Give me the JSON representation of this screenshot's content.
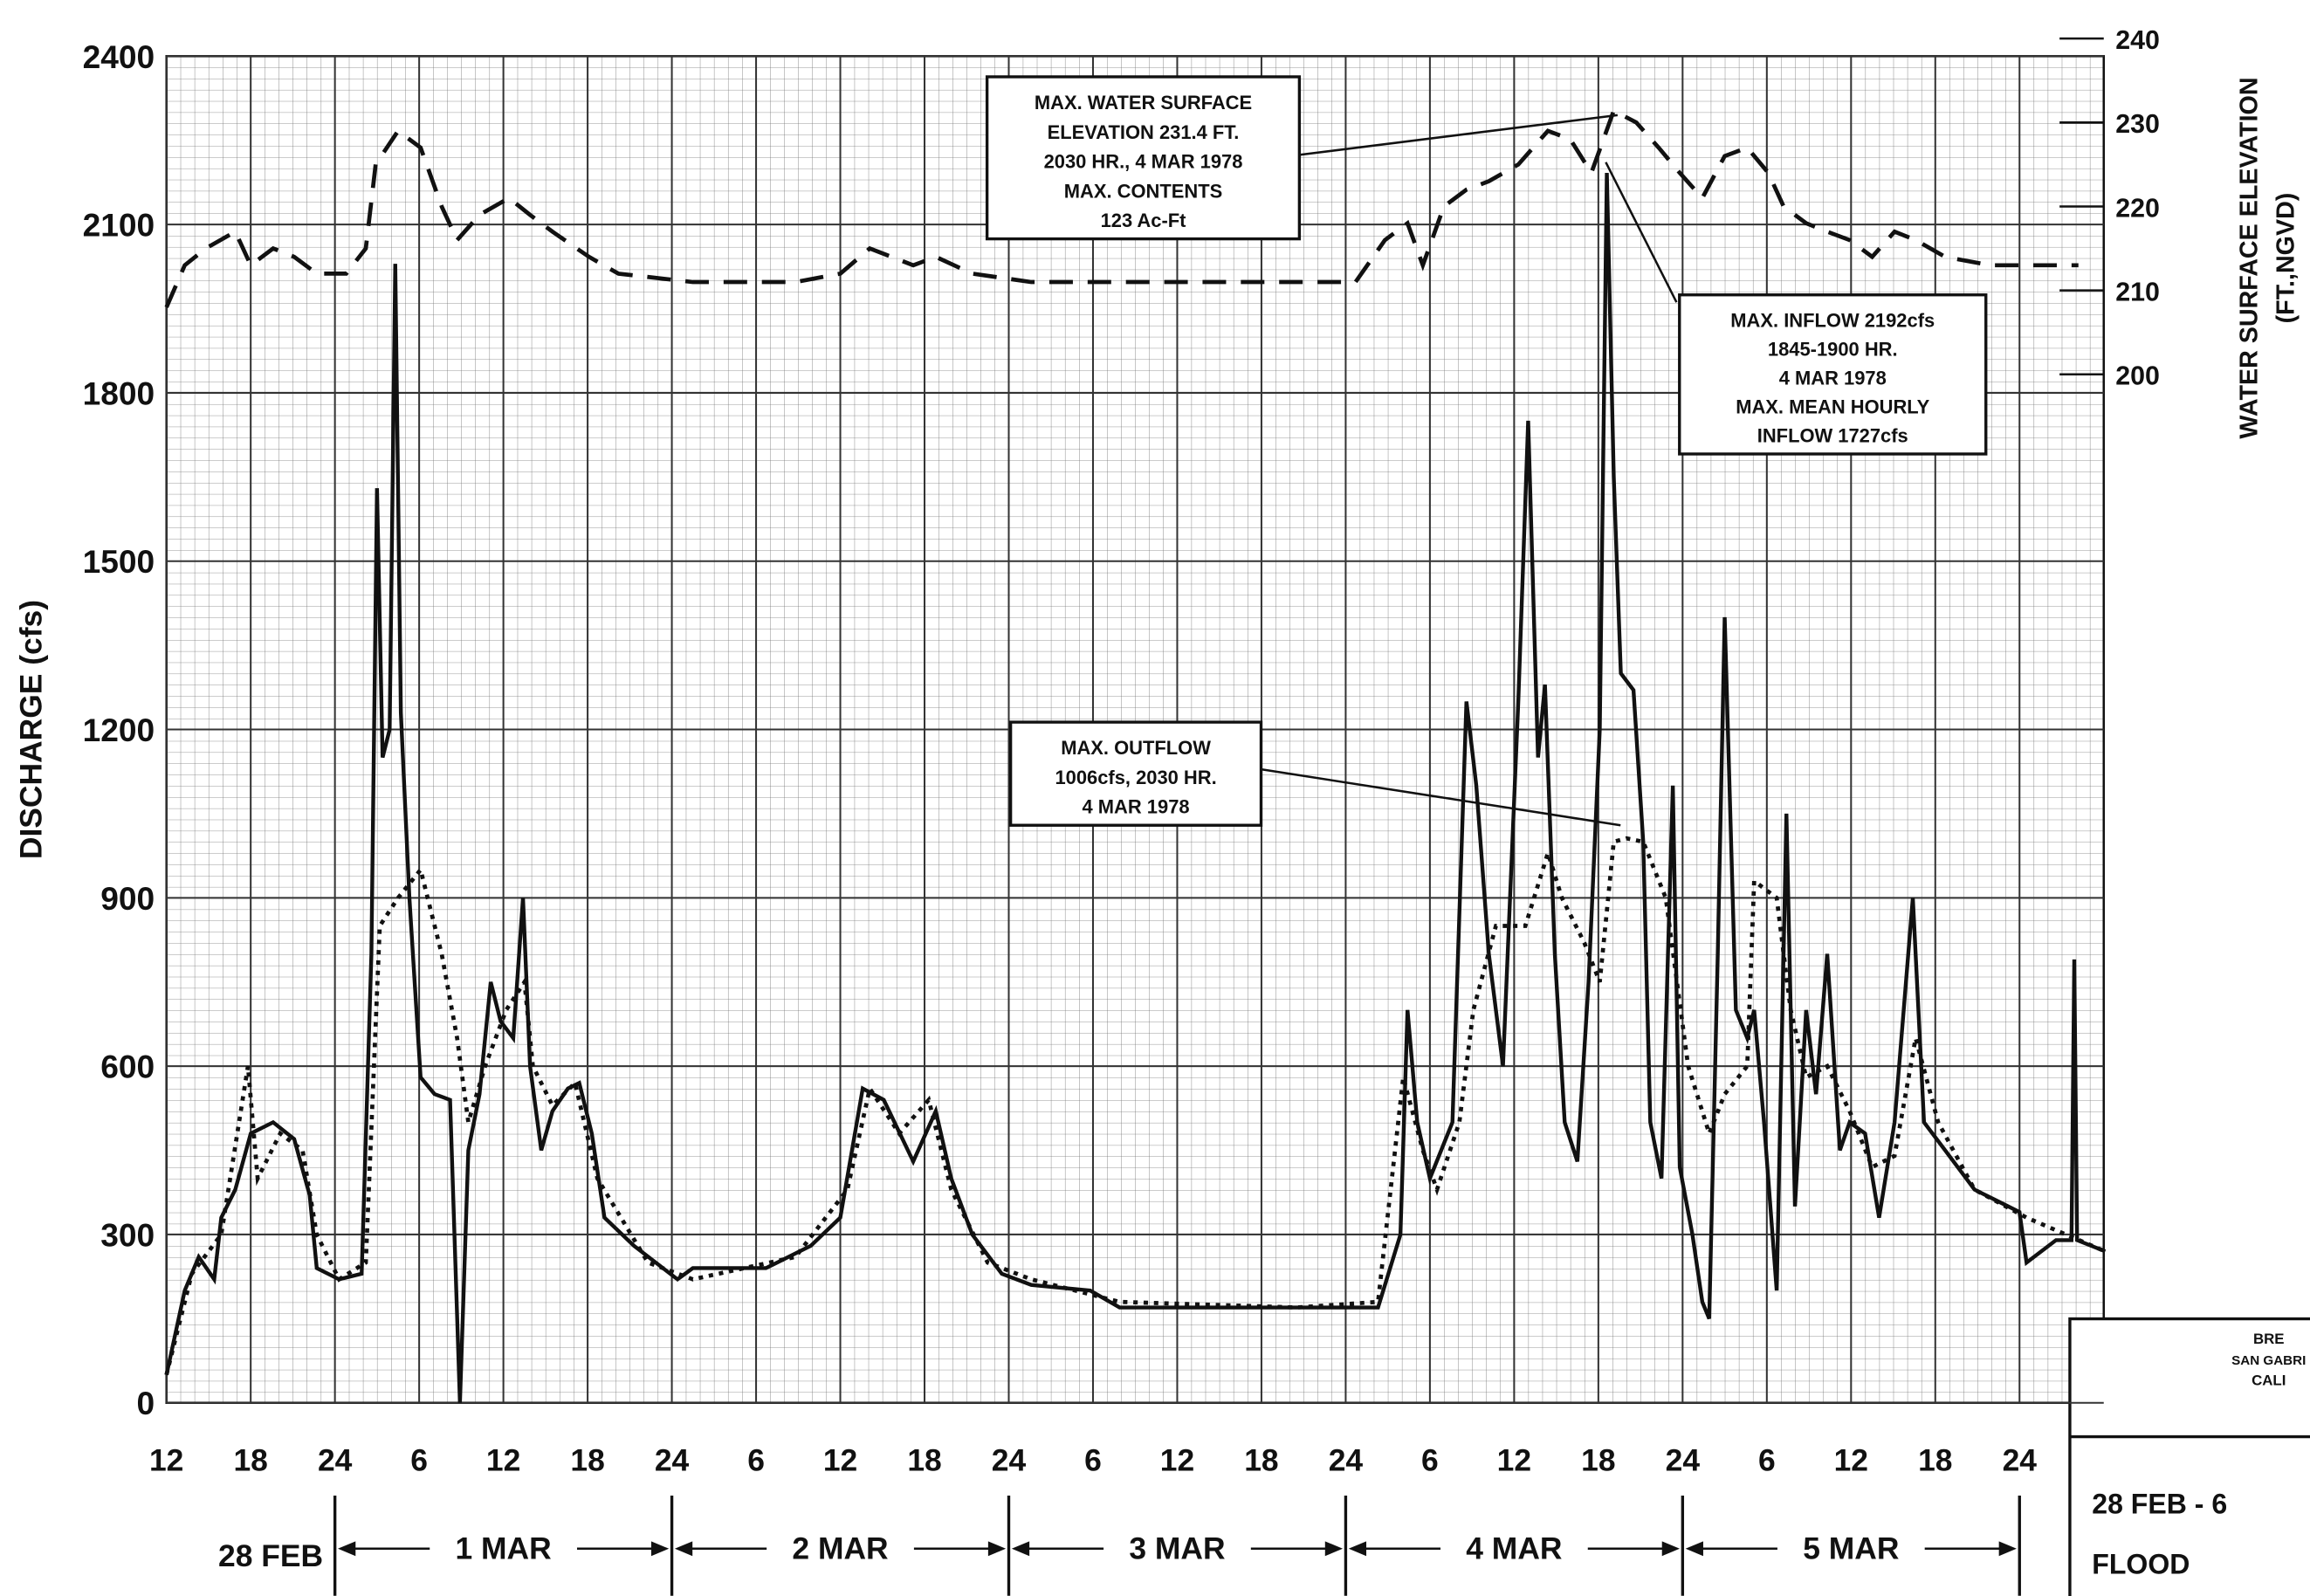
{
  "chart_data": {
    "type": "line",
    "y_label": "DISCHARGE (cfs)",
    "y2_label": [
      "WATER SURFACE ELEVATION",
      "(FT.,NGVD)"
    ],
    "xlim": [
      12,
      150
    ],
    "xticks": [
      12,
      18,
      24,
      {
        "value": 30,
        "label": "6"
      },
      {
        "value": 36,
        "label": "12"
      },
      {
        "value": 42,
        "label": "18"
      },
      {
        "value": 48,
        "label": "24"
      },
      {
        "value": 54,
        "label": "6"
      },
      {
        "value": 60,
        "label": "12"
      },
      {
        "value": 66,
        "label": "18"
      },
      {
        "value": 72,
        "label": "24"
      },
      {
        "value": 78,
        "label": "6"
      },
      {
        "value": 84,
        "label": "12"
      },
      {
        "value": 90,
        "label": "18"
      },
      {
        "value": 96,
        "label": "24"
      },
      {
        "value": 102,
        "label": "6"
      },
      {
        "value": 108,
        "label": "12"
      },
      {
        "value": 114,
        "label": "18"
      },
      {
        "value": 120,
        "label": "24"
      },
      {
        "value": 126,
        "label": "6"
      },
      {
        "value": 132,
        "label": "12"
      },
      {
        "value": 138,
        "label": "18"
      },
      {
        "value": 144,
        "label": "24"
      }
    ],
    "day_labels": [
      "28 FEB",
      "1 MAR",
      "2 MAR",
      "3 MAR",
      "4 MAR",
      "5 MAR"
    ],
    "ylim": [
      0,
      2400
    ],
    "yticks": [
      0,
      300,
      600,
      900,
      1200,
      1500,
      1800,
      2100,
      2400
    ],
    "y2lim": [
      77.5,
      237.9
    ],
    "y2ticks": [
      200,
      210,
      220,
      230,
      240
    ],
    "grid": true,
    "series": [
      {
        "style": "solid",
        "color": "#111111",
        "x": [
          12.0,
          13.3,
          14.3,
          15.4,
          15.9,
          16.9,
          18.0,
          19.6,
          21.1,
          22.2,
          22.7,
          24.3,
          25.9,
          26.6,
          27.0,
          27.4,
          27.9,
          28.3,
          28.7,
          29.3,
          30.1,
          31.1,
          32.2,
          32.9,
          33.5,
          34.3,
          35.1,
          35.8,
          36.7,
          37.4,
          37.9,
          38.7,
          39.5,
          40.6,
          41.4,
          42.3,
          43.2,
          45.3,
          48.4,
          49.5,
          54.7,
          57.9,
          60.0,
          61.6,
          63.1,
          65.2,
          66.8,
          67.9,
          69.4,
          71.5,
          73.6,
          77.8,
          79.9,
          89.4,
          98.3,
          99.9,
          100.4,
          101.1,
          102.0,
          103.6,
          104.6,
          105.3,
          106.2,
          107.2,
          108.3,
          109.0,
          109.7,
          110.2,
          110.9,
          111.6,
          112.5,
          113.3,
          114.1,
          114.6,
          115.1,
          115.6,
          116.5,
          117.2,
          117.7,
          118.5,
          119.3,
          119.8,
          120.7,
          121.4,
          121.9,
          122.5,
          123.0,
          123.8,
          124.6,
          125.1,
          125.8,
          126.7,
          127.4,
          128.0,
          128.8,
          129.5,
          130.3,
          131.2,
          131.9,
          133.0,
          134.0,
          135.1,
          136.4,
          137.2,
          138.7,
          140.8,
          144.0,
          144.5,
          146.6,
          147.7,
          147.9,
          148.1,
          150.1
        ],
        "values": [
          50,
          200,
          260,
          220,
          330,
          380,
          480,
          500,
          470,
          370,
          240,
          220,
          230,
          800,
          1630,
          1150,
          1200,
          2030,
          1230,
          900,
          580,
          550,
          540,
          0,
          450,
          550,
          750,
          680,
          650,
          900,
          600,
          450,
          520,
          560,
          570,
          480,
          330,
          280,
          220,
          240,
          240,
          280,
          330,
          560,
          540,
          430,
          520,
          400,
          300,
          230,
          210,
          200,
          170,
          170,
          170,
          300,
          700,
          500,
          400,
          500,
          1250,
          1100,
          800,
          600,
          1250,
          1750,
          1150,
          1280,
          800,
          500,
          430,
          750,
          1200,
          2192,
          1650,
          1300,
          1270,
          1000,
          500,
          400,
          1100,
          420,
          300,
          180,
          150,
          800,
          1400,
          700,
          650,
          700,
          500,
          200,
          1050,
          350,
          700,
          550,
          800,
          450,
          500,
          480,
          330,
          500,
          900,
          500,
          450,
          380,
          340,
          250,
          290,
          290,
          790,
          290,
          270
        ]
      },
      {
        "style": "dotted",
        "color": "#111111",
        "x": [
          12.0,
          13.8,
          15.9,
          17.8,
          18.5,
          20.1,
          21.7,
          22.7,
          24.3,
          26.2,
          27.2,
          28.5,
          30.1,
          31.6,
          32.7,
          33.5,
          34.7,
          36.2,
          37.5,
          38.1,
          39.5,
          41.1,
          42.7,
          46.3,
          49.5,
          56.8,
          60.5,
          62.1,
          64.2,
          66.3,
          67.9,
          70.5,
          73.6,
          79.9,
          92.5,
          98.3,
          100.1,
          101.5,
          102.5,
          104.1,
          105.1,
          106.7,
          108.8,
          110.4,
          111.4,
          113.0,
          114.1,
          115.1,
          116.0,
          117.2,
          118.8,
          120.4,
          121.9,
          123.0,
          124.6,
          125.1,
          126.7,
          127.7,
          128.8,
          130.3,
          131.9,
          133.5,
          135.1,
          136.6,
          138.2,
          140.8,
          144.5,
          150.1
        ],
        "values": [
          50,
          230,
          300,
          600,
          400,
          480,
          450,
          300,
          220,
          250,
          850,
          900,
          950,
          800,
          650,
          500,
          600,
          700,
          750,
          600,
          530,
          570,
          400,
          250,
          220,
          260,
          380,
          560,
          480,
          540,
          380,
          250,
          220,
          180,
          170,
          180,
          580,
          450,
          380,
          500,
          700,
          850,
          850,
          980,
          900,
          820,
          750,
          1000,
          1006,
          1000,
          900,
          600,
          480,
          550,
          600,
          930,
          900,
          700,
          580,
          600,
          520,
          420,
          440,
          650,
          500,
          380,
          330,
          270
        ]
      },
      {
        "style": "dashed",
        "color": "#111111",
        "axis": "y2",
        "x": [
          12.0,
          13.3,
          14.8,
          16.9,
          18.0,
          19.6,
          21.1,
          22.7,
          24.8,
          26.2,
          26.9,
          28.5,
          30.1,
          31.6,
          32.7,
          34.3,
          36.4,
          37.9,
          39.5,
          42.1,
          44.2,
          49.5,
          56.8,
          60.0,
          62.1,
          65.2,
          66.8,
          69.4,
          73.6,
          78.9,
          89.4,
          96.7,
          98.8,
          100.4,
          101.5,
          103.0,
          104.6,
          106.2,
          108.3,
          110.4,
          112.0,
          113.5,
          115.1,
          116.7,
          118.3,
          119.8,
          121.4,
          123.0,
          124.6,
          126.1,
          127.2,
          128.8,
          130.3,
          131.9,
          133.5,
          135.1,
          136.6,
          138.7,
          141.9,
          146.6,
          148.2
        ],
        "values": [
          208,
          213,
          215,
          217,
          213,
          215,
          214,
          212,
          212,
          215,
          225,
          229,
          227,
          220,
          216,
          219,
          221,
          219,
          217,
          214,
          212,
          211,
          211,
          212,
          215,
          213,
          214,
          212,
          211,
          211,
          211,
          211,
          216,
          218,
          213,
          220,
          222,
          223,
          225,
          229,
          228,
          224,
          231.4,
          230,
          227,
          224,
          221,
          226,
          227,
          224,
          220,
          218,
          217,
          216,
          214,
          217,
          216,
          214,
          213,
          213,
          213
        ]
      }
    ],
    "annotations": [
      [
        "MAX. WATER SURFACE",
        "ELEVATION 231.4 FT.",
        "2030 HR., 4 MAR 1978",
        "MAX. CONTENTS",
        "123 Ac-Ft"
      ],
      [
        "MAX. INFLOW 2192cfs",
        "1845-1900 HR.",
        "4 MAR 1978",
        "MAX. MEAN HOURLY",
        "INFLOW 1727cfs"
      ],
      [
        "MAX. OUTFLOW",
        "1006cfs, 2030 HR.",
        "4 MAR 1978"
      ]
    ],
    "title_block": [
      "BRE",
      "SAN GABRI",
      "CALI",
      "28 FEB - 6",
      "FLOOD"
    ]
  }
}
